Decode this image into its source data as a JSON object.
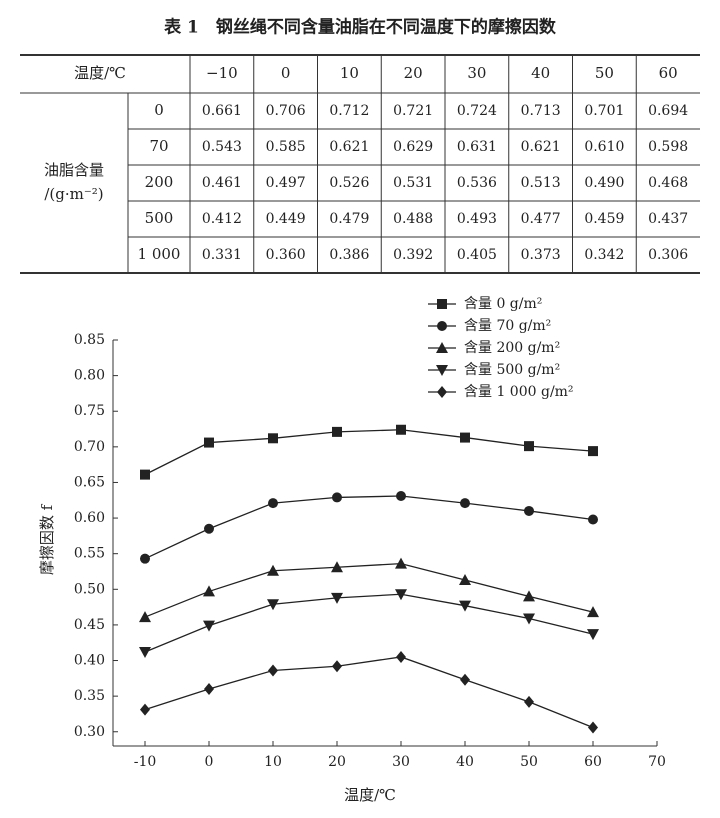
{
  "table": {
    "caption": "表 1　钢丝绳不同含量油脂在不同温度下的摩擦因数",
    "corner": "温度/℃",
    "columns": [
      "−10",
      "0",
      "10",
      "20",
      "30",
      "40",
      "50",
      "60"
    ],
    "group_label": "油脂含量\n/(g·m⁻²)",
    "row_labels": [
      "0",
      "70",
      "200",
      "500",
      "1 000"
    ],
    "rows": [
      [
        "0.661",
        "0.706",
        "0.712",
        "0.721",
        "0.724",
        "0.713",
        "0.701",
        "0.694"
      ],
      [
        "0.543",
        "0.585",
        "0.621",
        "0.629",
        "0.631",
        "0.621",
        "0.610",
        "0.598"
      ],
      [
        "0.461",
        "0.497",
        "0.526",
        "0.531",
        "0.536",
        "0.513",
        "0.490",
        "0.468"
      ],
      [
        "0.412",
        "0.449",
        "0.479",
        "0.488",
        "0.493",
        "0.477",
        "0.459",
        "0.437"
      ],
      [
        "0.331",
        "0.360",
        "0.386",
        "0.392",
        "0.405",
        "0.373",
        "0.342",
        "0.306"
      ]
    ]
  },
  "chart_data": {
    "type": "line",
    "x_label": "温度/℃",
    "y_label": "摩擦因数 f",
    "x": [
      -10,
      0,
      10,
      20,
      30,
      40,
      50,
      60
    ],
    "xlim": [
      -15,
      70
    ],
    "xticks": [
      -10,
      0,
      10,
      20,
      30,
      40,
      50,
      60,
      70
    ],
    "ylim": [
      0.28,
      0.85
    ],
    "yticks": [
      {
        "value": 0.3,
        "label": "0.30"
      },
      0.35,
      {
        "value": 0.4,
        "label": "0.40"
      },
      0.45,
      {
        "value": 0.5,
        "label": "0.50"
      },
      0.55,
      {
        "value": 0.6,
        "label": "0.60"
      },
      0.65,
      {
        "value": 0.7,
        "label": "0.70"
      },
      0.75,
      {
        "value": 0.8,
        "label": "0.80"
      },
      0.85
    ],
    "legend": "top-right",
    "series": [
      {
        "name": "含量 0 g/m²",
        "color": "#222222",
        "marker": "square",
        "values": [
          0.661,
          0.706,
          0.712,
          0.721,
          0.724,
          0.713,
          0.701,
          0.694
        ]
      },
      {
        "name": "含量 70 g/m²",
        "color": "#222222",
        "marker": "circle",
        "values": [
          0.543,
          0.585,
          0.621,
          0.629,
          0.631,
          0.621,
          0.61,
          0.598
        ]
      },
      {
        "name": "含量 200 g/m²",
        "color": "#222222",
        "marker": "triangle-up",
        "values": [
          0.461,
          0.497,
          0.526,
          0.531,
          0.536,
          0.513,
          0.49,
          0.468
        ]
      },
      {
        "name": "含量 500 g/m²",
        "color": "#222222",
        "marker": "triangle-down",
        "values": [
          0.412,
          0.449,
          0.479,
          0.488,
          0.493,
          0.477,
          0.459,
          0.437
        ]
      },
      {
        "name": "含量 1 000 g/m²",
        "color": "#222222",
        "marker": "diamond",
        "values": [
          0.331,
          0.36,
          0.386,
          0.392,
          0.405,
          0.373,
          0.342,
          0.306
        ]
      }
    ]
  }
}
